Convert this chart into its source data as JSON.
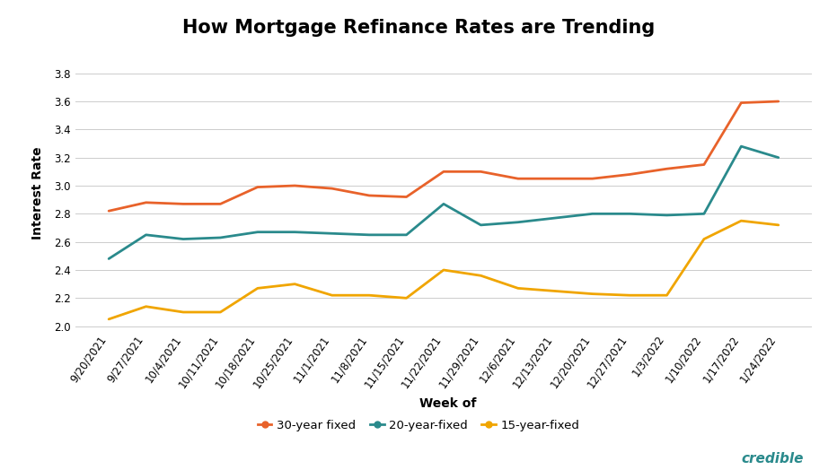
{
  "title": "How Mortgage Refinance Rates are Trending",
  "xlabel": "Week of",
  "ylabel": "Interest Rate",
  "ylim": [
    1.98,
    3.92
  ],
  "yticks": [
    2.0,
    2.2,
    2.4,
    2.6,
    2.8,
    3.0,
    3.2,
    3.4,
    3.6,
    3.8
  ],
  "x_labels": [
    "9/20/2021",
    "9/27/2021",
    "10/4/2021",
    "10/11/2021",
    "10/18/2021",
    "10/25/2021",
    "11/1/2021",
    "11/8/2021",
    "11/15/2021",
    "11/22/2021",
    "11/29/2021",
    "12/6/2021",
    "12/13/2021",
    "12/20/2021",
    "12/27/2021",
    "1/3/2022",
    "1/10/2022",
    "1/17/2022",
    "1/24/2022"
  ],
  "series": {
    "30-year fixed": {
      "color": "#E8622A",
      "values": [
        2.82,
        2.88,
        2.87,
        2.87,
        2.99,
        3.0,
        2.98,
        2.93,
        2.92,
        3.1,
        3.1,
        3.05,
        3.05,
        3.05,
        3.08,
        3.12,
        3.15,
        3.59,
        3.6
      ]
    },
    "20-year-fixed": {
      "color": "#2A8A8C",
      "values": [
        2.48,
        2.65,
        2.62,
        2.63,
        2.67,
        2.67,
        2.66,
        2.65,
        2.65,
        2.87,
        2.72,
        2.74,
        2.77,
        2.8,
        2.8,
        2.79,
        2.8,
        3.28,
        3.2
      ]
    },
    "15-year-fixed": {
      "color": "#F0A500",
      "values": [
        2.05,
        2.14,
        2.1,
        2.1,
        2.27,
        2.3,
        2.22,
        2.22,
        2.2,
        2.4,
        2.36,
        2.27,
        2.25,
        2.23,
        2.22,
        2.22,
        2.62,
        2.75,
        2.72
      ]
    }
  },
  "legend_entries": [
    "30-year fixed",
    "20-year-fixed",
    "15-year-fixed"
  ],
  "legend_colors": [
    "#E8622A",
    "#2A8A8C",
    "#F0A500"
  ],
  "title_fontsize": 15,
  "label_fontsize": 10,
  "tick_fontsize": 8.5,
  "line_width": 2.0,
  "background_color": "#FFFFFF",
  "grid_color": "#CCCCCC",
  "credible_color": "#2A8A8C",
  "credible_text": "credible"
}
